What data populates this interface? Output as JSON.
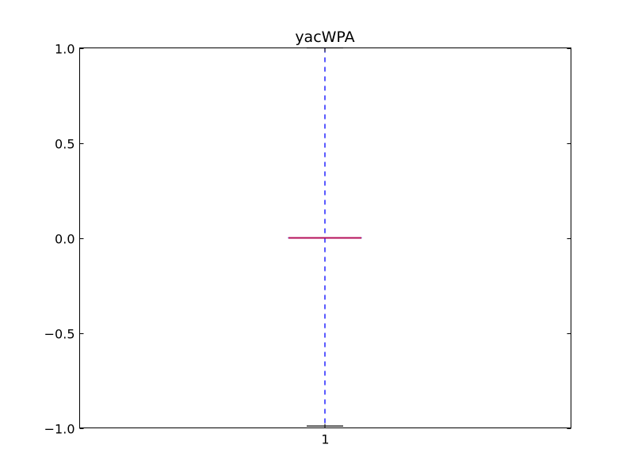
{
  "chart_data": {
    "type": "box",
    "title": "yacWPA",
    "xlabel": "",
    "ylabel": "",
    "categories": [
      "1"
    ],
    "ylim": [
      -1.0,
      1.0
    ],
    "yticks": [
      "1.0",
      "0.5",
      "0.0",
      "−0.5",
      "−1.0"
    ],
    "ytick_values": [
      1.0,
      0.5,
      0.0,
      -0.5,
      -1.0
    ],
    "grid": false,
    "boxes": [
      {
        "category": "1",
        "whisker_low": -0.99,
        "q1": 0.0,
        "median": 0.0,
        "q3": 0.0,
        "whisker_high": 1.0
      }
    ],
    "colors": {
      "median": "#b5105a",
      "whisker": "#0000ff",
      "cap": "#000000",
      "box": "#0000ff"
    }
  }
}
